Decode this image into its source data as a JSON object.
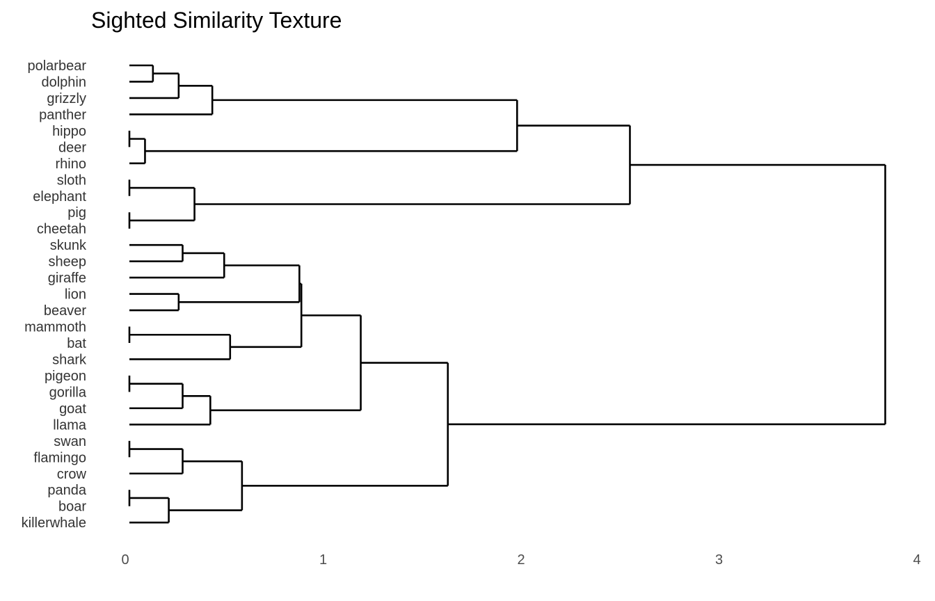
{
  "chart_data": {
    "type": "dendrogram",
    "title": "Sighted Similarity Texture",
    "xlabel": "",
    "ylabel": "",
    "xlim": [
      0,
      4
    ],
    "x_ticks": [
      "0",
      "1",
      "2",
      "3",
      "4"
    ],
    "grid": false,
    "leaves": [
      "polarbear",
      "dolphin",
      "grizzly",
      "panther",
      "hippo",
      "deer",
      "rhino",
      "sloth",
      "elephant",
      "pig",
      "cheetah",
      "skunk",
      "sheep",
      "giraffe",
      "lion",
      "beaver",
      "mammoth",
      "bat",
      "shark",
      "pigeon",
      "gorilla",
      "goat",
      "llama",
      "swan",
      "flamingo",
      "crow",
      "panda",
      "boar",
      "killerwhale"
    ],
    "merges": [
      {
        "id": "n1",
        "height": 0.14,
        "children": [
          "polarbear",
          "dolphin"
        ]
      },
      {
        "id": "n2",
        "height": 0.27,
        "children": [
          "n1",
          "grizzly"
        ]
      },
      {
        "id": "n3",
        "height": 0.44,
        "children": [
          "n2",
          "panther"
        ]
      },
      {
        "id": "n4",
        "height": 0.0,
        "children": [
          "hippo",
          "deer"
        ]
      },
      {
        "id": "n5",
        "height": 0.1,
        "children": [
          "n4",
          "rhino"
        ]
      },
      {
        "id": "n6",
        "height": 1.98,
        "children": [
          "n3",
          "n5"
        ]
      },
      {
        "id": "n7",
        "height": 0.0,
        "children": [
          "sloth",
          "elephant"
        ]
      },
      {
        "id": "n8",
        "height": 0.0,
        "children": [
          "pig",
          "cheetah"
        ]
      },
      {
        "id": "n9",
        "height": 0.35,
        "children": [
          "n7",
          "n8"
        ]
      },
      {
        "id": "n10",
        "height": 2.55,
        "children": [
          "n6",
          "n9"
        ]
      },
      {
        "id": "n11",
        "height": 0.29,
        "children": [
          "skunk",
          "sheep"
        ]
      },
      {
        "id": "n12",
        "height": 0.5,
        "children": [
          "n11",
          "giraffe"
        ]
      },
      {
        "id": "n13",
        "height": 0.27,
        "children": [
          "lion",
          "beaver"
        ]
      },
      {
        "id": "n14",
        "height": 0.88,
        "children": [
          "n12",
          "n13"
        ]
      },
      {
        "id": "n15",
        "height": 0.0,
        "children": [
          "mammoth",
          "bat"
        ]
      },
      {
        "id": "n16",
        "height": 0.53,
        "children": [
          "n15",
          "shark"
        ]
      },
      {
        "id": "n17",
        "height": 0.89,
        "children": [
          "n14",
          "n16"
        ]
      },
      {
        "id": "n18",
        "height": 0.0,
        "children": [
          "pigeon",
          "gorilla"
        ]
      },
      {
        "id": "n19",
        "height": 0.29,
        "children": [
          "n18",
          "goat"
        ]
      },
      {
        "id": "n20",
        "height": 0.43,
        "children": [
          "n19",
          "llama"
        ]
      },
      {
        "id": "n21",
        "height": 1.19,
        "children": [
          "n17",
          "n20"
        ]
      },
      {
        "id": "n22",
        "height": 0.0,
        "children": [
          "swan",
          "flamingo"
        ]
      },
      {
        "id": "n23",
        "height": 0.29,
        "children": [
          "n22",
          "crow"
        ]
      },
      {
        "id": "n24",
        "height": 0.0,
        "children": [
          "panda",
          "boar"
        ]
      },
      {
        "id": "n25",
        "height": 0.22,
        "children": [
          "n24",
          "killerwhale"
        ]
      },
      {
        "id": "n26",
        "height": 0.59,
        "children": [
          "n23",
          "n25"
        ]
      },
      {
        "id": "n27",
        "height": 1.63,
        "children": [
          "n21",
          "n26"
        ]
      },
      {
        "id": "n28",
        "height": 3.84,
        "children": [
          "n10",
          "n27"
        ]
      }
    ]
  }
}
